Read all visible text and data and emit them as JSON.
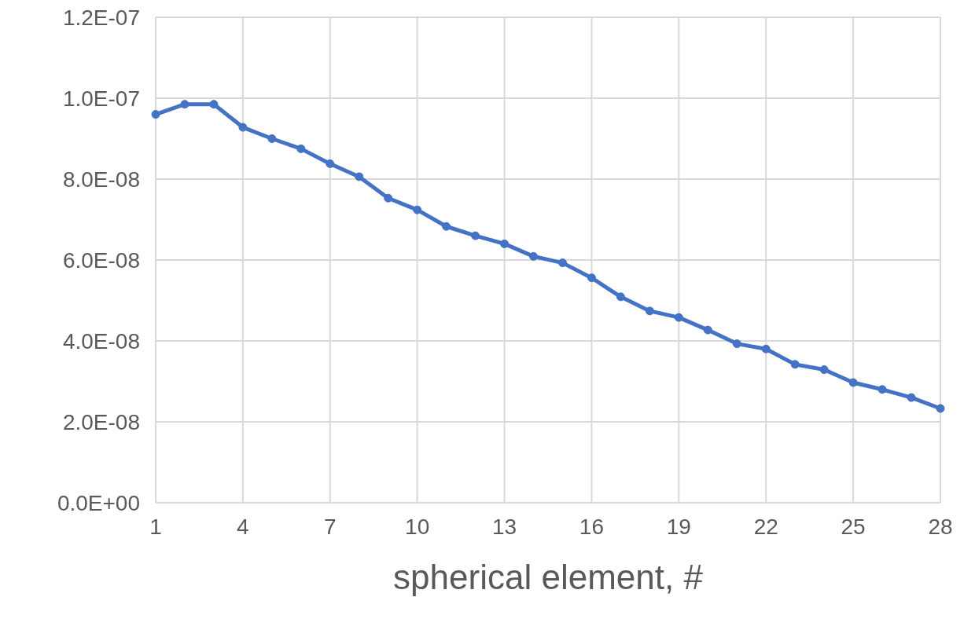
{
  "chart_data": {
    "type": "line",
    "xlabel": "spherical element, #",
    "x": [
      1,
      2,
      3,
      4,
      5,
      6,
      7,
      8,
      9,
      10,
      11,
      12,
      13,
      14,
      15,
      16,
      17,
      18,
      19,
      20,
      21,
      22,
      23,
      24,
      25,
      26,
      27,
      28
    ],
    "series": [
      {
        "color": "#4472c4",
        "values": [
          9.6e-08,
          9.85e-08,
          9.85e-08,
          9.28e-08,
          9e-08,
          8.75e-08,
          8.38e-08,
          8.06e-08,
          7.53e-08,
          7.24e-08,
          6.83e-08,
          6.6e-08,
          6.4e-08,
          6.09e-08,
          5.93e-08,
          5.56e-08,
          5.09e-08,
          4.74e-08,
          4.58e-08,
          4.27e-08,
          3.93e-08,
          3.8e-08,
          3.42e-08,
          3.29e-08,
          2.97e-08,
          2.8e-08,
          2.6e-08,
          2.33e-08
        ]
      }
    ],
    "xlim": [
      1,
      28
    ],
    "xticks": [
      1,
      4,
      7,
      10,
      13,
      16,
      19,
      22,
      25,
      28
    ],
    "ylim": [
      0,
      1.2e-07
    ],
    "yticks": [
      {
        "value": 0,
        "label": "0.0E+00"
      },
      {
        "value": 2e-08,
        "label": "2.0E-08"
      },
      {
        "value": 4e-08,
        "label": "4.0E-08"
      },
      {
        "value": 6e-08,
        "label": "6.0E-08"
      },
      {
        "value": 8e-08,
        "label": "8.0E-08"
      },
      {
        "value": 1e-07,
        "label": "1.0E-07"
      },
      {
        "value": 1.2e-07,
        "label": "1.2E-07"
      }
    ],
    "grid": true,
    "marker": "circle",
    "line_style": "solid"
  }
}
